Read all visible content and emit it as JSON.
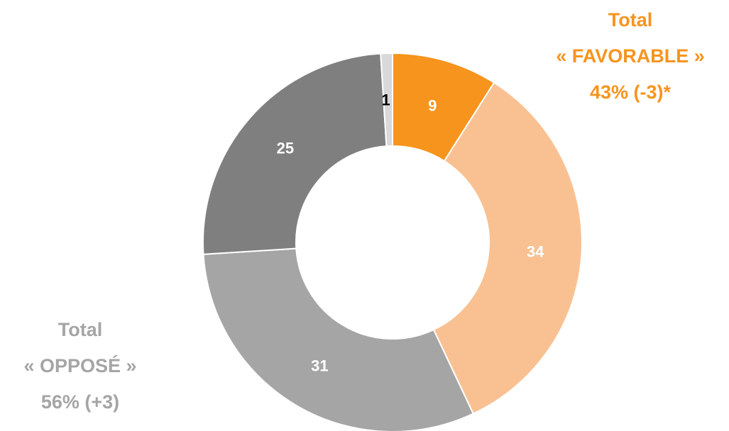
{
  "chart_data": {
    "type": "donut",
    "categories": [
      null,
      null,
      null,
      null,
      null
    ],
    "values": [
      9,
      34,
      31,
      25,
      1
    ],
    "colors": [
      "#f7941d",
      "#f9c192",
      "#a5a5a5",
      "#7f7f7f",
      "#d9d9d9"
    ],
    "label_colors": [
      "#ffffff",
      "#ffffff",
      "#ffffff",
      "#ffffff",
      "#000000"
    ],
    "annotations": [
      {
        "lines": [
          "Total",
          "« FAVORABLE »",
          "43% (-3)*"
        ],
        "color": "#f7941d"
      },
      {
        "lines": [
          "Total",
          "« OPPOSÉ »",
          "56% (+3)"
        ],
        "color": "#a5a5a5"
      }
    ]
  }
}
